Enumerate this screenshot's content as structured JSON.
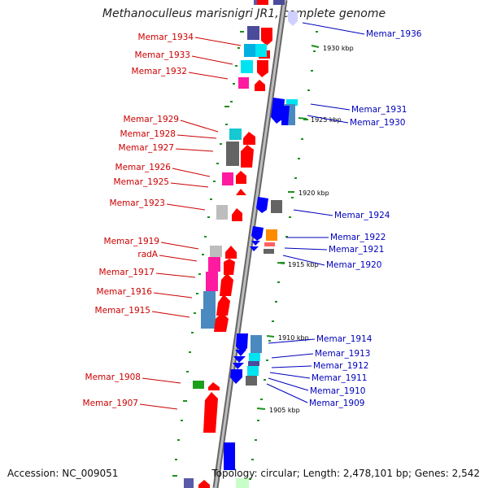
{
  "title": "Methanoculleus marisnigri JR1, complete genome",
  "footer": {
    "accession": "Accession: NC_009051",
    "summary": "Topology: circular; Length: 2,478,101 bp; Genes: 2,542"
  },
  "ticks": [
    "1930 kbp",
    "1925 kbp",
    "1920 kbp",
    "1915 kbp",
    "1910 kbp",
    "1905 kbp"
  ],
  "left_labels": [
    "Memar_1934",
    "Memar_1933",
    "Memar_1932",
    "Memar_1929",
    "Memar_1928",
    "Memar_1927",
    "Memar_1926",
    "Memar_1925",
    "Memar_1923",
    "Memar_1919",
    "radA",
    "Memar_1917",
    "Memar_1916",
    "Memar_1915",
    "Memar_1908",
    "Memar_1907"
  ],
  "right_labels": [
    "Memar_1936",
    "Memar_1931",
    "Memar_1930",
    "Memar_1924",
    "Memar_1922",
    "Memar_1921",
    "Memar_1920",
    "Memar_1914",
    "Memar_1913",
    "Memar_1912",
    "Memar_1911",
    "Memar_1910",
    "Memar_1909"
  ],
  "colors": {
    "left_label": "#cc0000",
    "right_label": "#0000bb",
    "forward_gene": "#ff0000",
    "reverse_gene": "#0000ff",
    "backbone": "#9a9a9a",
    "gc_dots": "#1f8f1f"
  }
}
